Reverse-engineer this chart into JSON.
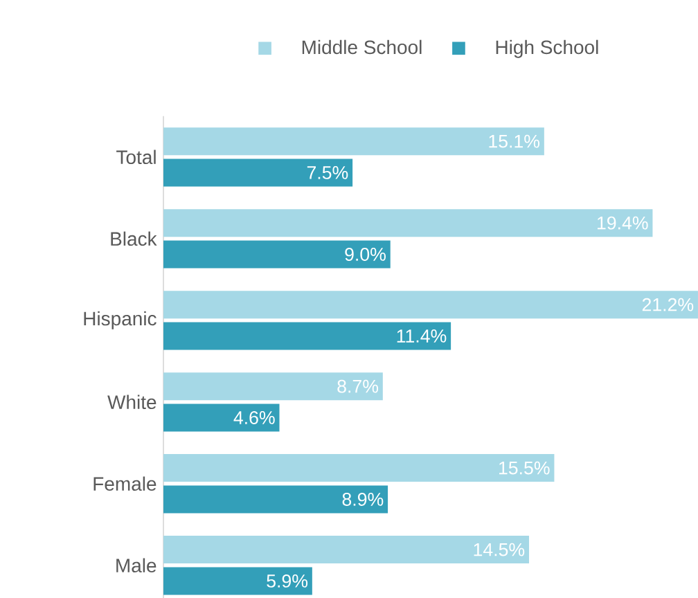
{
  "chart_data": {
    "type": "bar",
    "orientation": "horizontal",
    "legend": "top",
    "categories": [
      "Total",
      "Black",
      "Hispanic",
      "White",
      "Female",
      "Male"
    ],
    "series": [
      {
        "name": "Middle School",
        "color": "#a5d8e6",
        "values": [
          15.1,
          19.4,
          21.2,
          8.7,
          15.5,
          14.5
        ],
        "value_labels": [
          "15.1%",
          "19.4%",
          "21.2%",
          "8.7%",
          "15.5%",
          "14.5%"
        ]
      },
      {
        "name": "High School",
        "color": "#339fb9",
        "values": [
          7.5,
          9.0,
          11.4,
          4.6,
          8.9,
          5.9
        ],
        "value_labels": [
          "7.5%",
          "9.0%",
          "11.4%",
          "4.6%",
          "8.9%",
          "5.9%"
        ]
      }
    ]
  }
}
